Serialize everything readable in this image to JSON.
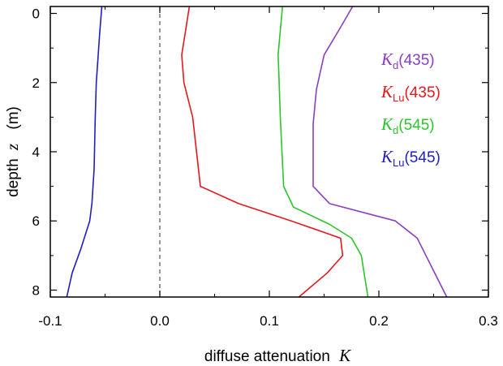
{
  "chart_data": {
    "type": "line",
    "xlabel": "diffuse attenuation",
    "xlabel_symbol": "K",
    "ylabel": "depth",
    "ylabel_symbol": "z",
    "ylabel_unit": "(m)",
    "xlim": [
      -0.1,
      0.3
    ],
    "ylim": [
      8.2,
      -0.2
    ],
    "y_inverted": true,
    "x_ticks": [
      -0.1,
      0.0,
      0.1,
      0.2,
      0.3
    ],
    "x_tick_labels": [
      "-0.1",
      "0.0",
      "0.1",
      "0.2",
      "0.3"
    ],
    "y_ticks": [
      0,
      2,
      4,
      6,
      8
    ],
    "y_tick_labels": [
      "0",
      "2",
      "4",
      "6",
      "8"
    ],
    "zero_line": {
      "x": 0.0,
      "style": "dashed",
      "color": "#555555"
    },
    "grid": false,
    "legend_position": "right",
    "series": [
      {
        "name": "Kd(435)",
        "symbol": "K",
        "subscript": "d",
        "wavelength": "(435)",
        "color": "#8B3FBF",
        "x": [
          0.176,
          0.165,
          0.15,
          0.143,
          0.14,
          0.14,
          0.155,
          0.215,
          0.235,
          0.243,
          0.262
        ],
        "y": [
          -0.2,
          0.4,
          1.2,
          2.2,
          3.2,
          5.0,
          5.5,
          6.0,
          6.5,
          7.0,
          8.2
        ]
      },
      {
        "name": "KLu(435)",
        "symbol": "K",
        "subscript": "Lu",
        "wavelength": "(435)",
        "color": "#E31A1C",
        "x": [
          0.027,
          0.024,
          0.02,
          0.022,
          0.03,
          0.037,
          0.072,
          0.12,
          0.165,
          0.167,
          0.153,
          0.127
        ],
        "y": [
          -0.2,
          0.4,
          1.2,
          2.0,
          3.0,
          5.0,
          5.5,
          6.0,
          6.5,
          7.0,
          7.5,
          8.2
        ]
      },
      {
        "name": "Kd(545)",
        "symbol": "K",
        "subscript": "d",
        "wavelength": "(545)",
        "color": "#2DC42D",
        "x": [
          0.112,
          0.11,
          0.108,
          0.109,
          0.11,
          0.113,
          0.122,
          0.155,
          0.175,
          0.184,
          0.188,
          0.19
        ],
        "y": [
          -0.2,
          0.5,
          1.2,
          2.0,
          3.0,
          5.0,
          5.6,
          6.1,
          6.5,
          7.0,
          7.8,
          8.2
        ]
      },
      {
        "name": "KLu(545)",
        "symbol": "K",
        "subscript": "Lu",
        "wavelength": "(545)",
        "color": "#1F1FBF",
        "x": [
          -0.053,
          -0.055,
          -0.058,
          -0.059,
          -0.06,
          -0.062,
          -0.064,
          -0.072,
          -0.08,
          -0.085
        ],
        "y": [
          -0.2,
          0.6,
          2.0,
          3.0,
          4.5,
          5.5,
          6.0,
          6.8,
          7.5,
          8.2
        ]
      }
    ]
  }
}
